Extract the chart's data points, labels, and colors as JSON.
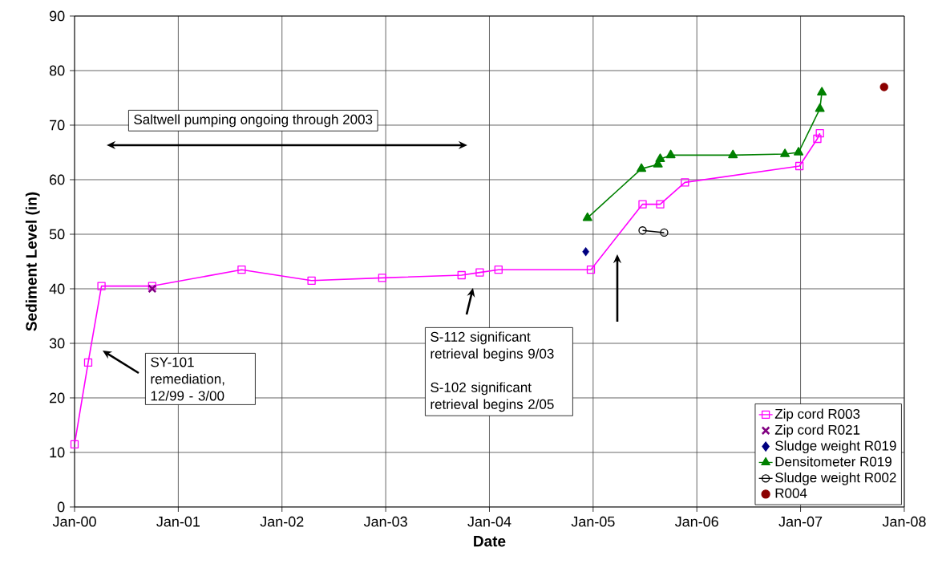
{
  "chart_data": {
    "type": "line",
    "xlabel": "Date",
    "ylabel": "Sediment Level (in)",
    "xlim": [
      "2000-01-01",
      "2008-01-01"
    ],
    "xticks": [
      {
        "value": "2000-01-01",
        "label": "Jan-00"
      },
      {
        "value": "2001-01-01",
        "label": "Jan-01"
      },
      {
        "value": "2002-01-01",
        "label": "Jan-02"
      },
      {
        "value": "2003-01-01",
        "label": "Jan-03"
      },
      {
        "value": "2004-01-01",
        "label": "Jan-04"
      },
      {
        "value": "2005-01-01",
        "label": "Jan-05"
      },
      {
        "value": "2006-01-01",
        "label": "Jan-06"
      },
      {
        "value": "2007-01-01",
        "label": "Jan-07"
      },
      {
        "value": "2008-01-01",
        "label": "Jan-08"
      }
    ],
    "ylim": [
      0,
      90
    ],
    "yticks": [
      0,
      10,
      20,
      30,
      40,
      50,
      60,
      70,
      80,
      90
    ],
    "grid": true,
    "legend": "bottom right",
    "series": [
      {
        "name": "Zip cord R003",
        "marker": "square",
        "color": "#ff00ff",
        "x": [
          "2000-01-01",
          "2000-02-18",
          "2000-04-05",
          "2000-10-01",
          "2001-08-12",
          "2002-04-15",
          "2002-12-20",
          "2003-09-25",
          "2003-11-28",
          "2004-02-02",
          "2004-12-24",
          "2005-06-24",
          "2005-08-25",
          "2005-11-20",
          "2006-12-28",
          "2007-03-01",
          "2007-03-10"
        ],
        "values": [
          11.5,
          26.5,
          40.5,
          40.5,
          43.5,
          41.5,
          42,
          42.5,
          43,
          43.5,
          43.5,
          55.5,
          55.5,
          59.5,
          62.5,
          67.5,
          68.5
        ]
      },
      {
        "name": "Zip cord R021",
        "type": "scatter",
        "marker": "cross",
        "color": "#800080",
        "x": [
          "2000-10-01"
        ],
        "values": [
          40
        ]
      },
      {
        "name": "Sludge weight R019",
        "type": "scatter",
        "marker": "diamond",
        "color": "#000080",
        "x": [
          "2004-12-06"
        ],
        "values": [
          46.8
        ]
      },
      {
        "name": "Densitometer R019",
        "marker": "triangle",
        "color": "#008000",
        "x": [
          "2004-12-12",
          "2005-06-20",
          "2005-08-17",
          "2005-08-25",
          "2005-10-01",
          "2006-05-08",
          "2006-11-07",
          "2006-12-25",
          "2007-03-10",
          "2007-03-17"
        ],
        "values": [
          53,
          62,
          62.8,
          63.8,
          64.5,
          64.5,
          64.7,
          65,
          73,
          76
        ]
      },
      {
        "name": "Sludge weight R002",
        "marker": "circle",
        "color": "#000000",
        "x": [
          "2005-06-24",
          "2005-09-08"
        ],
        "values": [
          50.7,
          50.3
        ]
      },
      {
        "name": "R004",
        "type": "scatter",
        "marker": "circle",
        "color": "#8b0000",
        "x": [
          "2007-10-22"
        ],
        "values": [
          77
        ]
      }
    ],
    "annotations": [
      "Saltwell pumping ongoing through 2003",
      "SY-101 remediation, 12/99 - 3/00",
      "S-112 significant retrieval begins 9/03",
      "S-102 significant retrieval begins 2/05"
    ]
  }
}
